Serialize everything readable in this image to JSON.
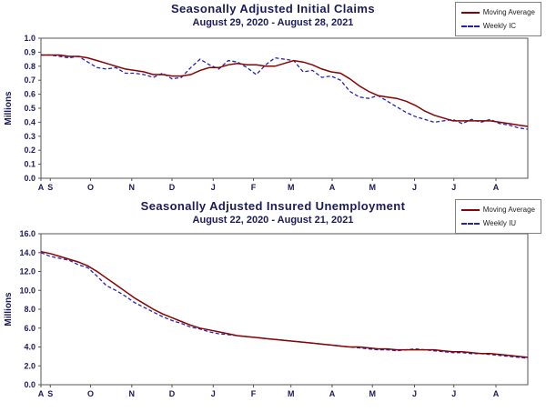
{
  "chart_data": [
    {
      "type": "line",
      "title": "Seasonally Adjusted Initial Claims",
      "subtitle": "August 29, 2020 - August 28, 2021",
      "ylabel": "Millions",
      "ylim": [
        0.0,
        1.0
      ],
      "ytick_step": 0.1,
      "ytick_decimals": 1,
      "grid": false,
      "legend_position": "top-right",
      "weeks": 53,
      "x_ticks": [
        {
          "label": "A",
          "week": 0
        },
        {
          "label": "S",
          "week": 1
        },
        {
          "label": "O",
          "week": 5.3
        },
        {
          "label": "N",
          "week": 9.7
        },
        {
          "label": "D",
          "week": 14
        },
        {
          "label": "J",
          "week": 18.4
        },
        {
          "label": "F",
          "week": 22.7
        },
        {
          "label": "M",
          "week": 26.7
        },
        {
          "label": "A",
          "week": 31.1
        },
        {
          "label": "M",
          "week": 35.4
        },
        {
          "label": "J",
          "week": 39.9
        },
        {
          "label": "J",
          "week": 44.1
        },
        {
          "label": "A",
          "week": 48.6
        }
      ],
      "series": [
        {
          "name": "Moving Average",
          "color": "#8B0000",
          "style": "solid",
          "values": [
            0.88,
            0.88,
            0.88,
            0.87,
            0.87,
            0.86,
            0.84,
            0.82,
            0.8,
            0.78,
            0.77,
            0.76,
            0.74,
            0.74,
            0.73,
            0.73,
            0.74,
            0.77,
            0.79,
            0.79,
            0.81,
            0.82,
            0.81,
            0.81,
            0.8,
            0.8,
            0.82,
            0.84,
            0.83,
            0.81,
            0.78,
            0.76,
            0.75,
            0.71,
            0.66,
            0.62,
            0.59,
            0.58,
            0.57,
            0.55,
            0.52,
            0.48,
            0.45,
            0.43,
            0.41,
            0.41,
            0.41,
            0.41,
            0.41,
            0.4,
            0.39,
            0.38,
            0.37
          ]
        },
        {
          "name": "Weekly IC",
          "color": "#2222BB",
          "style": "dashed",
          "values": [
            0.88,
            0.88,
            0.87,
            0.86,
            0.87,
            0.83,
            0.79,
            0.78,
            0.79,
            0.75,
            0.75,
            0.74,
            0.72,
            0.75,
            0.71,
            0.72,
            0.79,
            0.85,
            0.81,
            0.78,
            0.84,
            0.83,
            0.79,
            0.74,
            0.81,
            0.86,
            0.85,
            0.84,
            0.76,
            0.77,
            0.72,
            0.73,
            0.7,
            0.62,
            0.58,
            0.57,
            0.59,
            0.55,
            0.51,
            0.47,
            0.44,
            0.42,
            0.4,
            0.41,
            0.42,
            0.39,
            0.42,
            0.4,
            0.42,
            0.39,
            0.38,
            0.36,
            0.35
          ]
        }
      ]
    },
    {
      "type": "line",
      "title": "Seasonally Adjusted Insured Unemployment",
      "subtitle": "August 22, 2020 - August 21, 2021",
      "ylabel": "Millions",
      "ylim": [
        0.0,
        16.0
      ],
      "ytick_step": 2.0,
      "ytick_decimals": 1,
      "grid": false,
      "legend_position": "top-right",
      "weeks": 53,
      "x_ticks": [
        {
          "label": "A",
          "week": 0
        },
        {
          "label": "S",
          "week": 1
        },
        {
          "label": "O",
          "week": 5.3
        },
        {
          "label": "N",
          "week": 9.7
        },
        {
          "label": "D",
          "week": 14
        },
        {
          "label": "J",
          "week": 18.4
        },
        {
          "label": "F",
          "week": 22.7
        },
        {
          "label": "M",
          "week": 26.7
        },
        {
          "label": "A",
          "week": 31.1
        },
        {
          "label": "M",
          "week": 35.4
        },
        {
          "label": "J",
          "week": 39.9
        },
        {
          "label": "J",
          "week": 44.1
        },
        {
          "label": "A",
          "week": 48.6
        }
      ],
      "series": [
        {
          "name": "Moving Average",
          "color": "#8B0000",
          "style": "solid",
          "values": [
            14.1,
            13.9,
            13.6,
            13.3,
            13.0,
            12.6,
            12.0,
            11.3,
            10.6,
            9.9,
            9.2,
            8.6,
            8.0,
            7.5,
            7.1,
            6.7,
            6.3,
            6.0,
            5.8,
            5.6,
            5.4,
            5.2,
            5.1,
            5.0,
            4.9,
            4.8,
            4.7,
            4.6,
            4.5,
            4.4,
            4.3,
            4.2,
            4.1,
            4.0,
            4.0,
            3.9,
            3.8,
            3.8,
            3.7,
            3.7,
            3.7,
            3.7,
            3.7,
            3.6,
            3.5,
            3.5,
            3.4,
            3.3,
            3.3,
            3.2,
            3.1,
            3.0,
            2.9
          ]
        },
        {
          "name": "Weekly IU",
          "color": "#2222BB",
          "style": "dashed",
          "values": [
            14.0,
            13.6,
            13.4,
            13.2,
            12.7,
            12.4,
            11.5,
            10.5,
            10.0,
            9.4,
            8.7,
            8.2,
            7.7,
            7.2,
            6.8,
            6.5,
            6.1,
            5.9,
            5.6,
            5.4,
            5.3,
            5.2,
            5.1,
            5.0,
            4.9,
            4.8,
            4.7,
            4.6,
            4.5,
            4.4,
            4.3,
            4.2,
            4.1,
            4.0,
            3.9,
            3.8,
            3.7,
            3.7,
            3.6,
            3.7,
            3.8,
            3.7,
            3.6,
            3.5,
            3.4,
            3.4,
            3.3,
            3.3,
            3.2,
            3.1,
            3.0,
            2.9,
            2.8
          ]
        }
      ]
    }
  ]
}
